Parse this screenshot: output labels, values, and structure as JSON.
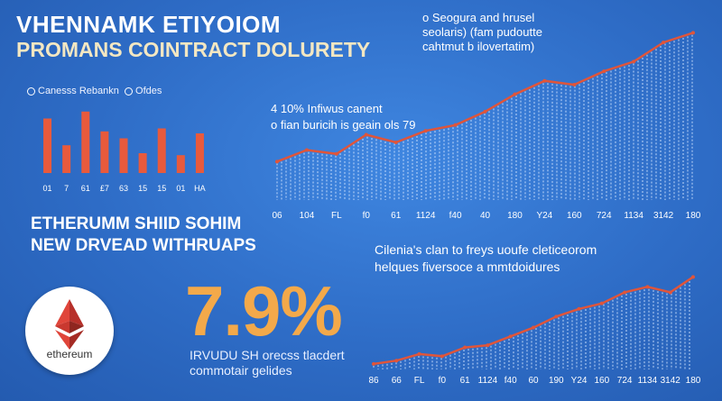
{
  "header": {
    "title1": "VHENNAMK ETIYOIOM",
    "title2": "PROMANS COINTRACT DOLURETY"
  },
  "legend_small": {
    "item1": "Canesss Rebankn",
    "item2": "Ofdes"
  },
  "section2": {
    "line1": "ETHERUMM SHIID SOHIM",
    "line2": "NEW DRVEAD WITHRUAPS"
  },
  "stat": {
    "value": "7.9%",
    "caption_line1": "IRVUDU SH orecss tlacdert",
    "caption_line2": "commotair gelides"
  },
  "logo": {
    "text": "ethereum",
    "icon": "ethereum-diamond-icon"
  },
  "line_legend": {
    "line1": "o Seogura and hrusel",
    "line2": "seolaris) (fam pudoutte",
    "line3": "cahtmut b ilovertatim)"
  },
  "notes": {
    "line1": "4 10% Infiwus canent",
    "line2": "o fian buricih is geain ols 79"
  },
  "notes2": {
    "line1": "Cilenia's clan to freys uoufe cleticeorom",
    "line2": "helques fiversoce a mmtdoidures"
  },
  "colors": {
    "background": "#2f6fc8",
    "bar": "#e85a3c",
    "line": "#e0553a",
    "accent": "#f3a94a"
  },
  "chart_data": [
    {
      "type": "bar",
      "categories": [
        "01",
        "7",
        "61",
        "£7",
        "63",
        "15",
        "15",
        "01",
        "HA"
      ],
      "values": [
        5.5,
        2.8,
        6.2,
        4.2,
        3.5,
        2.0,
        4.5,
        1.8,
        4.0
      ],
      "ylim": [
        0,
        7
      ],
      "title": "",
      "xlabel": "",
      "ylabel": ""
    },
    {
      "type": "area",
      "categories": [
        "06",
        "104",
        "FL",
        "f0",
        "61",
        "1124",
        "f40",
        "40",
        "180",
        "Y24",
        "160",
        "724",
        "1134",
        "3142",
        "180"
      ],
      "values": [
        20,
        26,
        24,
        34,
        30,
        36,
        39,
        46,
        55,
        62,
        60,
        67,
        72,
        82,
        87
      ],
      "ylim": [
        0,
        90
      ],
      "title": "",
      "xlabel": "",
      "ylabel": ""
    },
    {
      "type": "area",
      "categories": [
        "86",
        "66",
        "FL",
        "f0",
        "61",
        "1124",
        "f40",
        "60",
        "190",
        "Y24",
        "160",
        "724",
        "1134",
        "3142",
        "180"
      ],
      "values": [
        5,
        8,
        14,
        12,
        20,
        22,
        30,
        38,
        48,
        55,
        60,
        70,
        75,
        70,
        84
      ],
      "ylim": [
        0,
        90
      ],
      "title": "",
      "xlabel": "",
      "ylabel": ""
    }
  ]
}
